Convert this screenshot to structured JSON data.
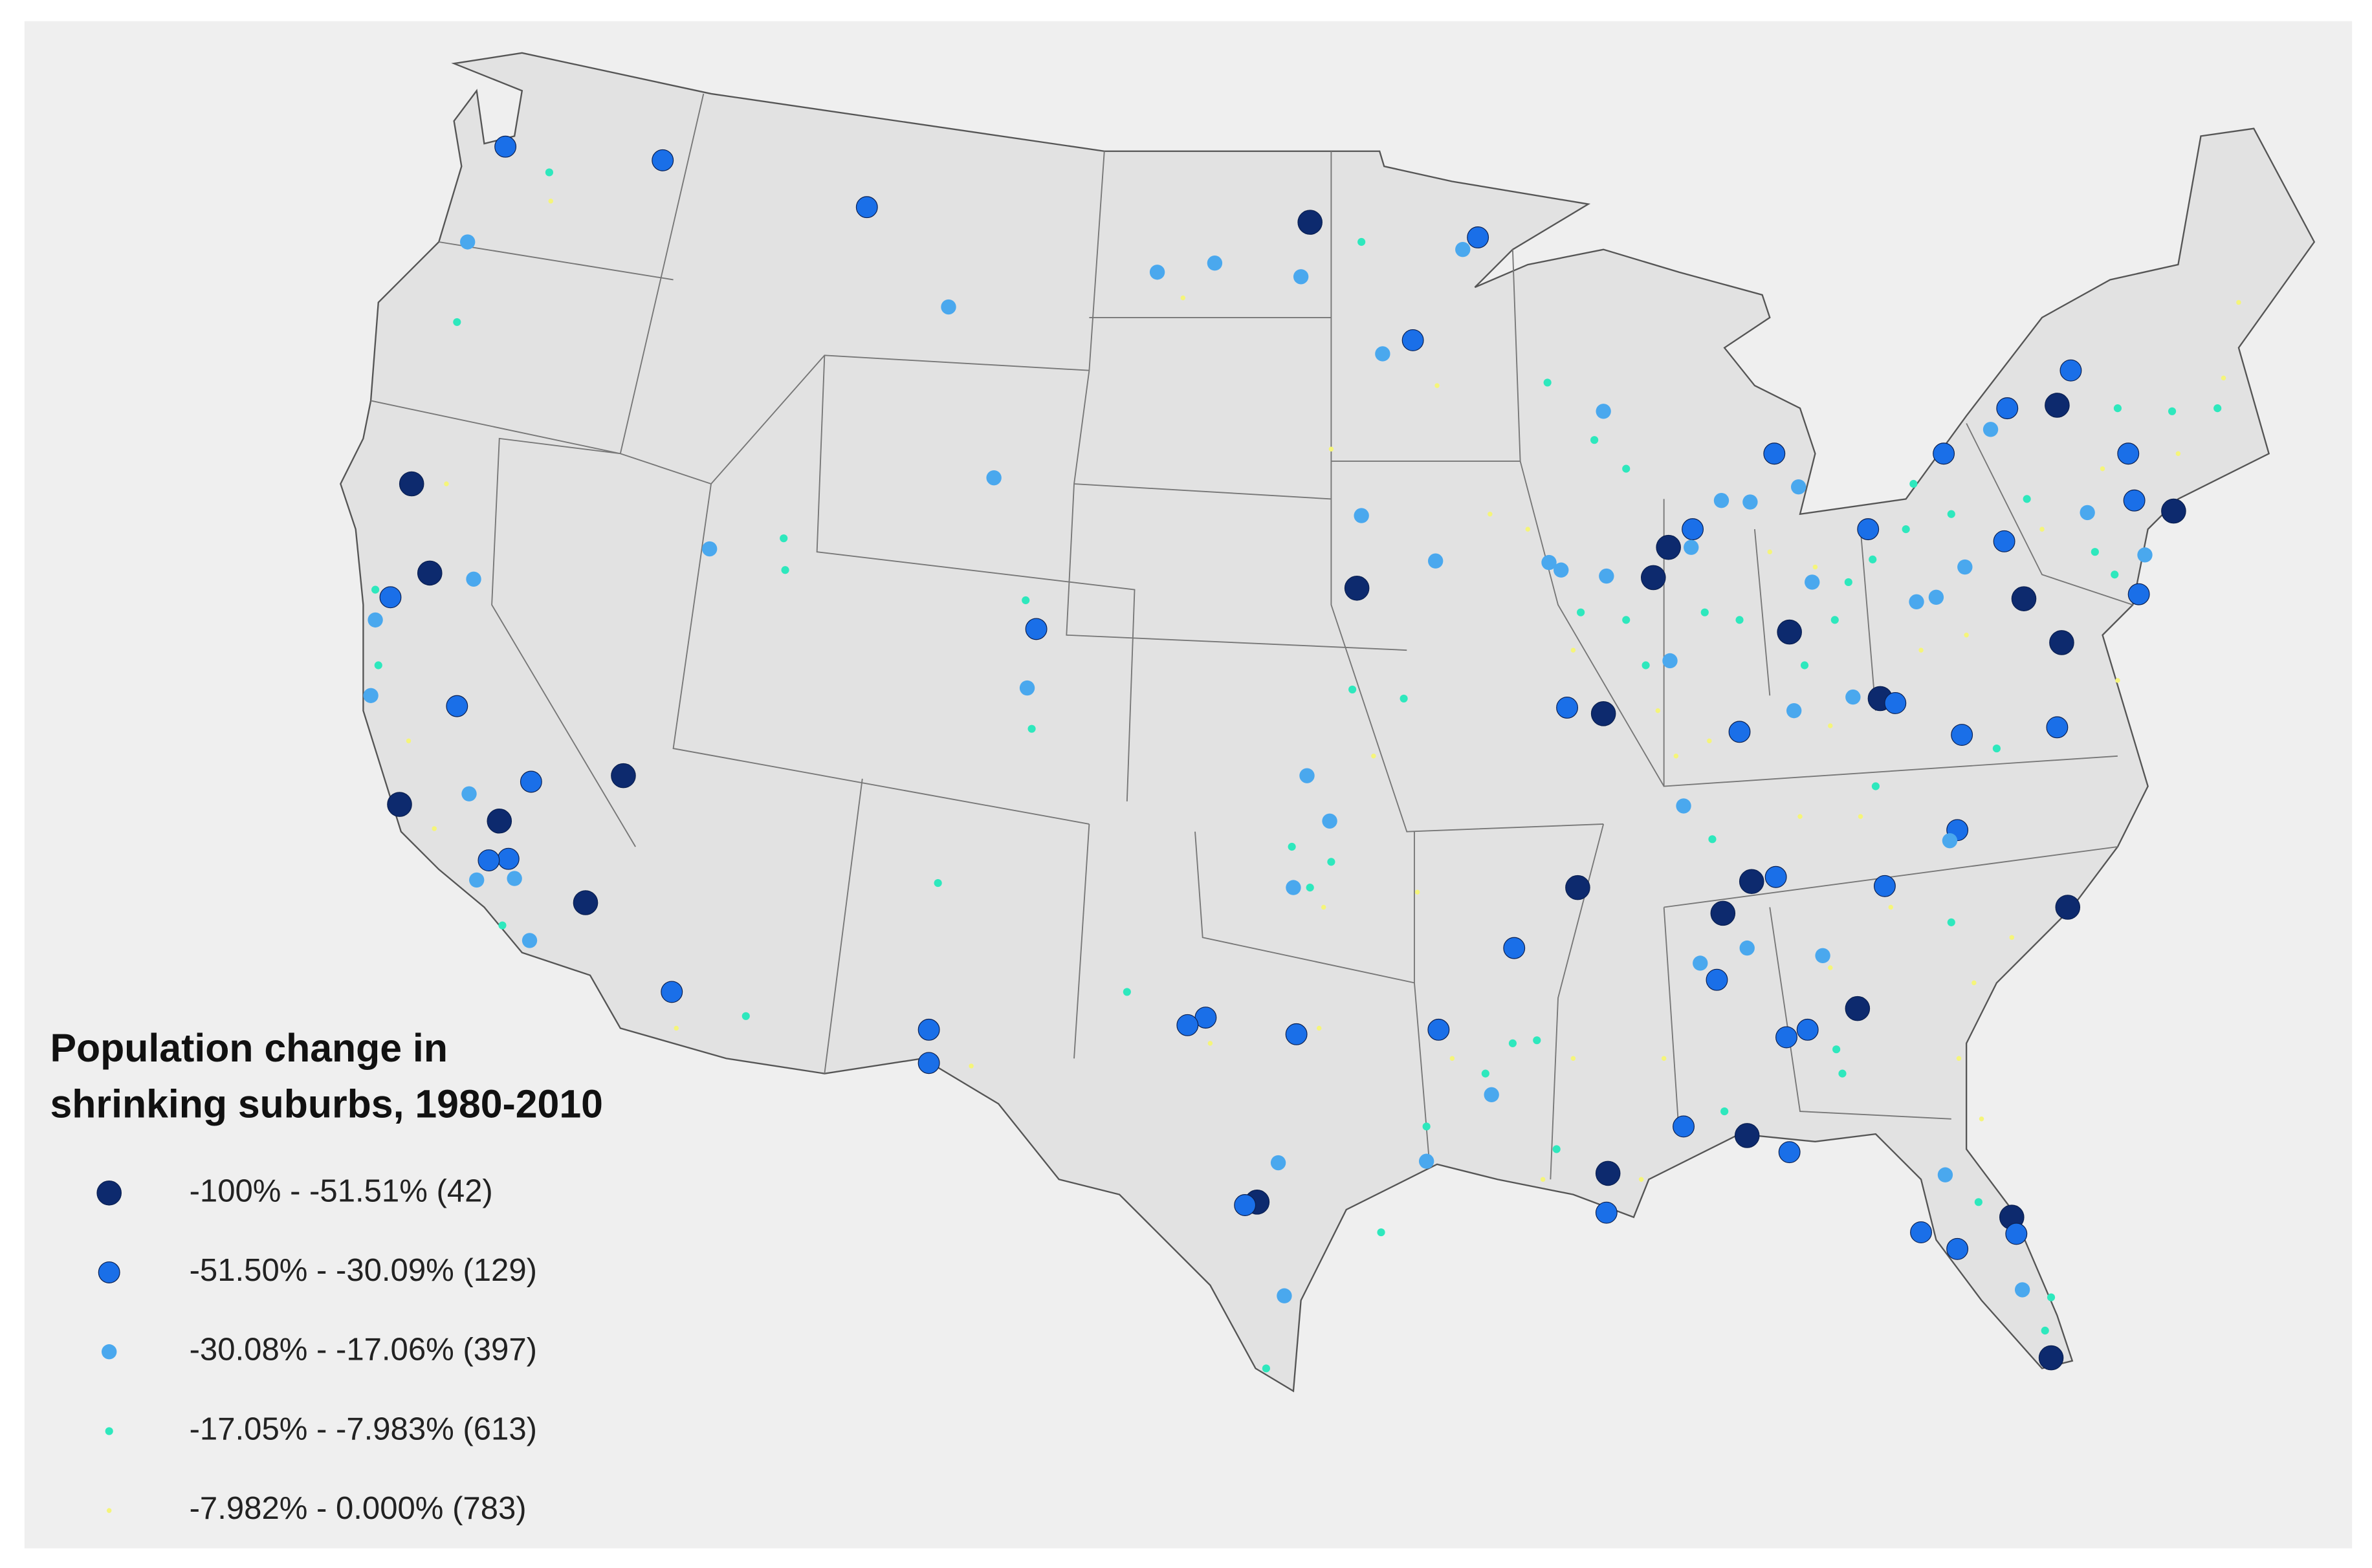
{
  "legend": {
    "title": [
      "Population change in",
      "shrinking suburbs, 1980-2010"
    ],
    "items": [
      {
        "label": "-100% - -51.51% (42)",
        "color": "#0d2a6e"
      },
      {
        "label": "-51.50% - -30.09% (129)",
        "color": "#1a6fe8"
      },
      {
        "label": "-30.08% - -17.06% (397)",
        "color": "#4aa8ee"
      },
      {
        "label": "-17.05% - -7.983% (613)",
        "color": "#2ee8bd"
      },
      {
        "label": "-7.982% - 0.000% (783)",
        "color": "#f5f57a"
      }
    ]
  }
}
